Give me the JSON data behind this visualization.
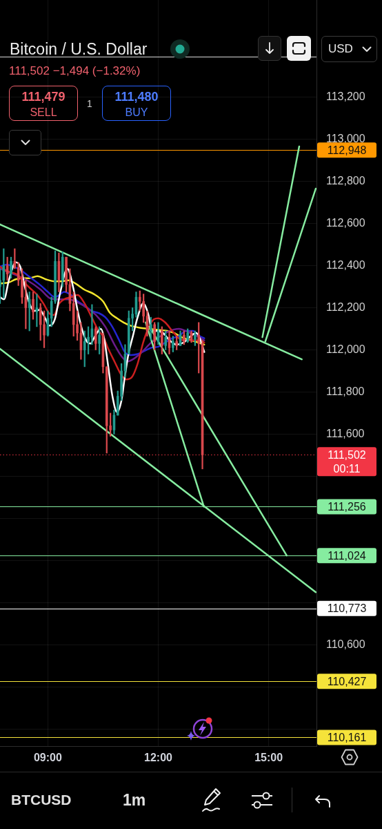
{
  "chart_data": {
    "type": "candlestick",
    "title": "Bitcoin / U.S. Dollar",
    "subtitle": "111,502 −1,494 (−1.32%)",
    "annotations": [
      "111,479",
      "SELL",
      "1",
      "111,480",
      "BUY",
      "USD",
      "BTCUSD",
      "1m"
    ],
    "x": [
      7.7,
      7.8,
      7.9,
      8.0,
      8.1,
      8.2,
      8.3,
      8.4,
      8.5,
      8.6,
      8.7,
      8.8,
      8.9,
      9.0,
      9.1,
      9.2,
      9.3,
      9.4,
      9.5,
      9.6,
      9.7,
      9.8,
      9.9,
      10.0,
      10.1,
      10.2,
      10.3,
      10.4,
      10.5,
      10.6,
      10.7,
      10.8,
      10.9,
      11.0,
      11.1,
      11.2,
      11.3,
      11.4,
      11.5,
      11.6,
      11.7,
      11.8,
      11.9,
      12.0,
      12.1,
      12.2,
      12.3,
      12.4,
      12.5,
      12.6,
      12.7,
      12.8,
      12.9,
      13.0,
      13.1,
      13.2
    ],
    "ohlc": [
      [
        112300,
        112385,
        112220,
        112330
      ],
      [
        112330,
        112480,
        112245,
        112400
      ],
      [
        112400,
        112440,
        112330,
        112360
      ],
      [
        112360,
        112440,
        112340,
        112420
      ],
      [
        112420,
        112480,
        112385,
        112390
      ],
      [
        112390,
        112415,
        112305,
        112330
      ],
      [
        112330,
        112385,
        112220,
        112250
      ],
      [
        112250,
        112330,
        112100,
        112200
      ],
      [
        112200,
        112275,
        112090,
        112240
      ],
      [
        112240,
        112275,
        112145,
        112180
      ],
      [
        112180,
        112265,
        112110,
        112200
      ],
      [
        112200,
        112220,
        112045,
        112120
      ],
      [
        112120,
        112185,
        112010,
        112070
      ],
      [
        112070,
        112185,
        112065,
        112150
      ],
      [
        112150,
        112250,
        112110,
        112230
      ],
      [
        112230,
        112470,
        112220,
        112420
      ],
      [
        112420,
        112460,
        112275,
        112330
      ],
      [
        112330,
        112465,
        112300,
        112440
      ],
      [
        112440,
        112440,
        112275,
        112310
      ],
      [
        112310,
        112385,
        112185,
        112220
      ],
      [
        112220,
        112275,
        112065,
        112120
      ],
      [
        112120,
        112185,
        112045,
        112080
      ],
      [
        112080,
        112130,
        111955,
        112000
      ],
      [
        112000,
        112090,
        111920,
        112040
      ],
      [
        112040,
        112110,
        111980,
        112060
      ],
      [
        112060,
        112215,
        112025,
        112100
      ],
      [
        112100,
        112110,
        112000,
        112030
      ],
      [
        112030,
        112110,
        111980,
        112070
      ],
      [
        112070,
        112080,
        111890,
        111920
      ],
      [
        111920,
        111920,
        111510,
        111640
      ],
      [
        111640,
        111700,
        111590,
        111620
      ],
      [
        111620,
        111715,
        111600,
        111690
      ],
      [
        111690,
        111805,
        111690,
        111780
      ],
      [
        111780,
        111935,
        111760,
        111900
      ],
      [
        111900,
        112025,
        111870,
        111980
      ],
      [
        111980,
        112185,
        111980,
        112150
      ],
      [
        112150,
        112200,
        112090,
        112170
      ],
      [
        112170,
        112275,
        112155,
        112250
      ],
      [
        112250,
        112280,
        112185,
        112230
      ],
      [
        112230,
        112265,
        112130,
        112160
      ],
      [
        112160,
        112185,
        112065,
        112090
      ],
      [
        112090,
        112155,
        112045,
        112120
      ],
      [
        112120,
        112130,
        112000,
        112040
      ],
      [
        112040,
        112130,
        112025,
        112090
      ],
      [
        112090,
        112110,
        111980,
        112020
      ],
      [
        112020,
        112090,
        112000,
        112060
      ],
      [
        112060,
        112090,
        111980,
        112010
      ],
      [
        112010,
        112065,
        111990,
        112040
      ],
      [
        112040,
        112065,
        112000,
        112020
      ],
      [
        112020,
        112090,
        112020,
        112070
      ],
      [
        112070,
        112090,
        112025,
        112040
      ],
      [
        112040,
        112100,
        112035,
        112080
      ],
      [
        112080,
        112090,
        112035,
        112050
      ],
      [
        112050,
        112090,
        112020,
        112070
      ],
      [
        112070,
        112130,
        111890,
        112030
      ],
      [
        112030,
        112045,
        111435,
        111502
      ]
    ],
    "series": [
      {
        "type": "line",
        "color": "#86eca0",
        "x": [
          7.7,
          15.9
        ],
        "values": [
          112595,
          111955
        ]
      },
      {
        "type": "line",
        "color": "#86eca0",
        "x": [
          7.7,
          16.28
        ],
        "values": [
          112005,
          110850
        ]
      },
      {
        "type": "line",
        "color": "#86eca0",
        "x": [
          11.66,
          13.24
        ],
        "values": [
          112130,
          111256
        ]
      },
      {
        "type": "line",
        "color": "#86eca0",
        "x": [
          11.76,
          15.49
        ],
        "values": [
          112110,
          111024
        ]
      },
      {
        "type": "line",
        "color": "#86eca0",
        "x": [
          14.83,
          15.83
        ],
        "values": [
          112060,
          112965
        ]
      },
      {
        "type": "line",
        "color": "#86eca0",
        "x": [
          14.91,
          16.28
        ],
        "values": [
          112040,
          112765
        ]
      },
      {
        "type": "line",
        "color": "#ffffff",
        "x": [
          7.7,
          7.81,
          7.94,
          8.13,
          8.25,
          8.38,
          8.5,
          8.63,
          8.78,
          8.94,
          9.03,
          9.19,
          9.34,
          9.53,
          9.69,
          9.81,
          9.94,
          10.06,
          10.16,
          10.25,
          10.44,
          10.53,
          10.63,
          10.75,
          10.88,
          11.0,
          11.09,
          11.19,
          11.31,
          11.44,
          11.59,
          11.72,
          11.84,
          11.94,
          12.13,
          12.31,
          12.5,
          12.69,
          12.88,
          13.03,
          13.13,
          13.25
        ],
        "values": [
          112250,
          112240,
          112330,
          112415,
          112395,
          112295,
          112220,
          112185,
          112190,
          112145,
          112115,
          112145,
          112275,
          112385,
          112295,
          112185,
          112090,
          112040,
          112030,
          112055,
          112100,
          112055,
          111935,
          111785,
          111705,
          111760,
          111870,
          111980,
          112065,
          112155,
          112220,
          112175,
          112090,
          112090,
          112080,
          112045,
          112025,
          112035,
          112065,
          112080,
          112055,
          111990
        ]
      },
      {
        "type": "line",
        "color": "#cc1f1f",
        "x": [
          7.7,
          7.88,
          8.06,
          8.19,
          8.31,
          8.5,
          8.69,
          8.88,
          9.03,
          9.16,
          9.31,
          9.44,
          9.63,
          9.81,
          10.0,
          10.19,
          10.38,
          10.5,
          10.63,
          10.81,
          11.0,
          11.13,
          11.28,
          11.44,
          11.59,
          11.75,
          11.88,
          12.0,
          12.19,
          12.38,
          12.56,
          12.75,
          12.94,
          13.13,
          13.25
        ],
        "values": [
          112395,
          112375,
          112365,
          112355,
          112330,
          112295,
          112265,
          112220,
          112175,
          112165,
          112220,
          112240,
          112250,
          112260,
          112220,
          112155,
          112090,
          112065,
          112010,
          111945,
          111880,
          111860,
          111870,
          111935,
          112035,
          112110,
          112145,
          112150,
          112130,
          112090,
          112055,
          112045,
          112045,
          112045,
          112035
        ]
      },
      {
        "type": "line",
        "color": "#6a1b8a",
        "x": [
          7.7,
          8.06,
          8.44,
          8.81,
          9.06,
          9.31,
          9.56,
          9.81,
          10.06,
          10.31,
          10.56,
          10.81,
          11.0,
          11.16,
          11.31,
          11.56,
          11.81,
          12.06,
          12.31,
          12.56,
          12.81,
          13.06,
          13.25
        ],
        "values": [
          112385,
          112360,
          112330,
          112285,
          112245,
          112240,
          112240,
          112225,
          112200,
          112165,
          112110,
          112025,
          111970,
          111945,
          111955,
          111990,
          112035,
          112065,
          112090,
          112100,
          112085,
          112065,
          112045
        ]
      },
      {
        "type": "line",
        "color": "#2525d0",
        "x": [
          7.7,
          7.88,
          8.06,
          8.25,
          8.44,
          8.63,
          8.81,
          9.0,
          9.19,
          9.31,
          9.44,
          9.63,
          9.81,
          10.0,
          10.19,
          10.38,
          10.56,
          10.75,
          10.94,
          11.09,
          11.25,
          11.44,
          11.63,
          11.81,
          12.0,
          12.19,
          12.38,
          12.56,
          12.75,
          12.94,
          13.13,
          13.25
        ],
        "values": [
          112395,
          112405,
          112395,
          112380,
          112355,
          112330,
          112305,
          112275,
          112250,
          112260,
          112275,
          112260,
          112230,
          112210,
          112185,
          112175,
          112155,
          112110,
          112045,
          111990,
          111975,
          111980,
          111995,
          112010,
          112015,
          112035,
          112055,
          112065,
          112090,
          112090,
          112065,
          112055
        ]
      },
      {
        "type": "line",
        "color": "#f2e52e",
        "x": [
          7.7,
          7.94,
          8.13,
          8.31,
          8.5,
          8.72,
          8.94,
          9.19,
          9.38,
          9.56,
          9.75,
          10.0,
          10.25,
          10.5,
          10.69,
          10.88,
          11.06,
          11.25,
          11.5,
          11.75,
          12.0,
          12.25,
          12.44,
          12.63,
          12.81,
          13.0,
          13.25
        ],
        "values": [
          112315,
          112320,
          112335,
          112340,
          112340,
          112350,
          112335,
          112325,
          112325,
          112330,
          112315,
          112285,
          112265,
          112230,
          112175,
          112150,
          112130,
          112115,
          112105,
          112100,
          112095,
          112090,
          112080,
          112060,
          112050,
          112040,
          112025
        ]
      }
    ],
    "xlim": [
      7.7,
      16.3
    ],
    "xticks": [
      {
        "value": 9,
        "label": "09:00"
      },
      {
        "value": 12,
        "label": "12:00"
      },
      {
        "value": 15,
        "label": "15:00"
      }
    ],
    "ylim": [
      110120,
      113660
    ],
    "yticks": [
      {
        "value": 110200,
        "label": null
      },
      {
        "value": 110400,
        "label": null
      },
      {
        "value": 110600,
        "label": "110,600"
      },
      {
        "value": 110800,
        "label": null
      },
      {
        "value": 111000,
        "label": null
      },
      {
        "value": 111200,
        "label": null
      },
      {
        "value": 111400,
        "label": null
      },
      {
        "value": 111600,
        "label": "111,600"
      },
      {
        "value": 111800,
        "label": "111,800"
      },
      {
        "value": 112000,
        "label": "112,000"
      },
      {
        "value": 112200,
        "label": "112,200"
      },
      {
        "value": 112400,
        "label": "112,400"
      },
      {
        "value": 112600,
        "label": "112,600"
      },
      {
        "value": 112800,
        "label": "112,800"
      },
      {
        "value": 113000,
        "label": "113,000"
      },
      {
        "value": 113200,
        "label": "113,200"
      }
    ],
    "ref_lines": [
      {
        "axis": "y",
        "value": 113390,
        "color": "#d9d9d9"
      },
      {
        "axis": "y",
        "value": 112948,
        "label": "112,948",
        "color": "#ff9800"
      },
      {
        "axis": "y",
        "value": 111502,
        "label": "111,502\n00:11",
        "color": "#f23645",
        "line_style": "dotted"
      },
      {
        "axis": "y",
        "value": 111256,
        "label": "111,256",
        "color": "#86eca0"
      },
      {
        "axis": "y",
        "value": 111024,
        "label": "111,024",
        "color": "#86eca0"
      },
      {
        "axis": "y",
        "value": 110773,
        "label": "110,773",
        "color": "#ffffff"
      },
      {
        "axis": "y",
        "value": 110427,
        "label": "110,427",
        "color": "#f5e33a"
      },
      {
        "axis": "y",
        "value": 110161,
        "label": "110,161",
        "color": "#f5e33a"
      }
    ],
    "grid": true
  }
}
